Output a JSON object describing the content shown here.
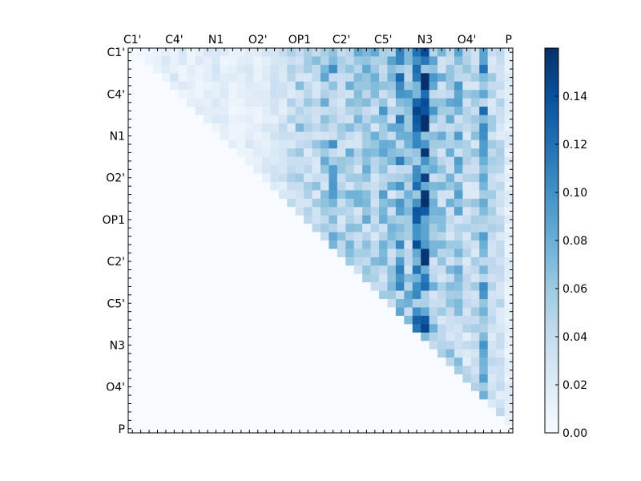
{
  "chart_data": {
    "type": "heatmap",
    "title": "",
    "xlabel": "",
    "ylabel": "",
    "n_cells": 46,
    "cell_labels": [
      "C1'",
      "",
      "",
      "",
      "",
      "C4'",
      "",
      "",
      "",
      "",
      "N1",
      "",
      "",
      "",
      "",
      "O2'",
      "",
      "",
      "",
      "",
      "OP1",
      "",
      "",
      "",
      "",
      "C2'",
      "",
      "",
      "",
      "",
      "C5'",
      "",
      "",
      "",
      "",
      "N3",
      "",
      "",
      "",
      "",
      "O4'",
      "",
      "",
      "",
      "",
      "P"
    ],
    "tick_labels": [
      "C1'",
      "C4'",
      "N1",
      "O2'",
      "OP1",
      "C2'",
      "C5'",
      "N3",
      "O4'",
      "P"
    ],
    "colormap": "Blues",
    "colors": {
      "low": "#f7fbff",
      "high": "#08306b"
    },
    "colorbar": {
      "min": 0.0,
      "max": 0.16,
      "ticks": [
        0.0,
        0.02,
        0.04,
        0.06,
        0.08,
        0.1,
        0.12,
        0.14
      ],
      "tick_labels": [
        "0.00",
        "0.02",
        "0.04",
        "0.06",
        "0.08",
        "0.10",
        "0.12",
        "0.14"
      ]
    },
    "column_profile": [
      0.004,
      0.012,
      0.018,
      0.016,
      0.02,
      0.022,
      0.018,
      0.014,
      0.016,
      0.018,
      0.02,
      0.016,
      0.014,
      0.016,
      0.02,
      0.018,
      0.02,
      0.024,
      0.032,
      0.04,
      0.058,
      0.046,
      0.052,
      0.062,
      0.075,
      0.052,
      0.06,
      0.06,
      0.066,
      0.058,
      0.072,
      0.062,
      0.09,
      0.07,
      0.112,
      0.132,
      0.07,
      0.06,
      0.062,
      0.07,
      0.044,
      0.05,
      0.09,
      0.044,
      0.04,
      0.018
    ],
    "values": []
  }
}
